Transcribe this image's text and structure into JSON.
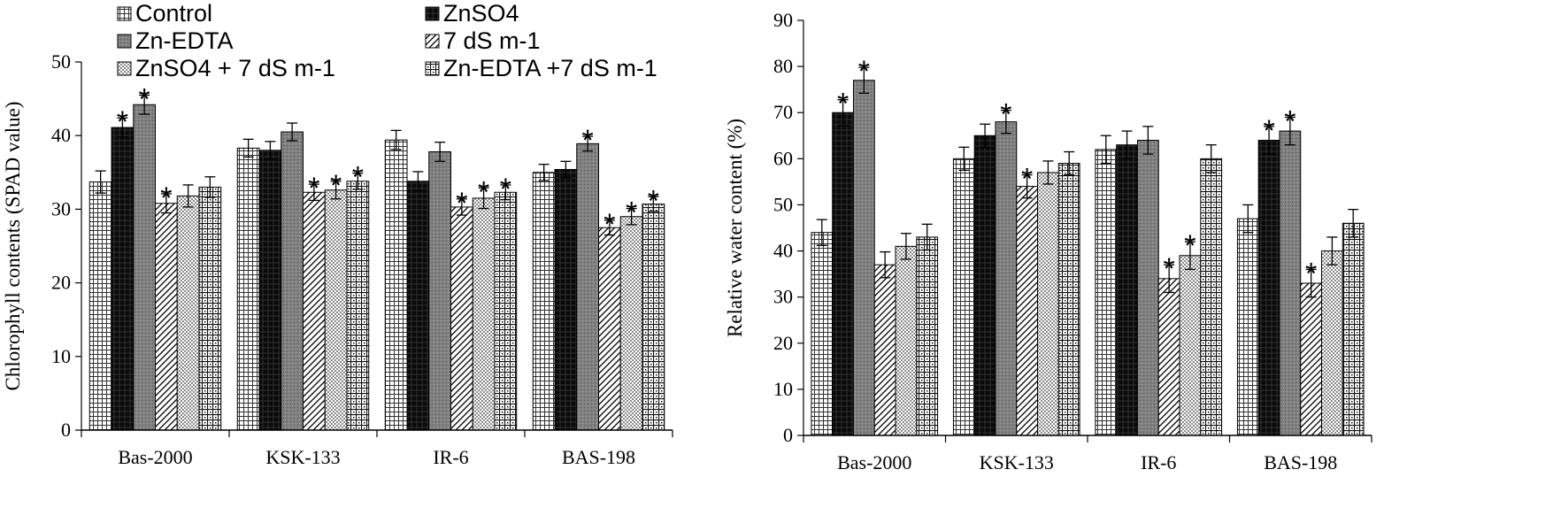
{
  "legend": [
    {
      "name": "Control",
      "pattern": "grid"
    },
    {
      "name": "ZnSO4",
      "pattern": "solid"
    },
    {
      "name": "Zn-EDTA",
      "pattern": "gray"
    },
    {
      "name": "7 dS m-1",
      "pattern": "diag"
    },
    {
      "name": "ZnSO4 + 7 dS m-1",
      "pattern": "check"
    },
    {
      "name": "Zn-EDTA +7 dS m-1",
      "pattern": "dots"
    }
  ],
  "chart_data": [
    {
      "type": "bar",
      "title": "",
      "xlabel": "",
      "ylabel": "Chlorophyll contents (SPAD value)",
      "ylim": [
        0,
        50
      ],
      "yticks": [
        "0",
        "10",
        "20",
        "30",
        "40",
        "50"
      ],
      "categories": [
        "Bas-2000",
        "KSK-133",
        "IR-6",
        "BAS-198"
      ],
      "significance_marker": "*",
      "series": [
        {
          "name": "Control",
          "values": [
            33.7,
            38.3,
            39.4,
            35.0
          ],
          "errors": [
            1.5,
            1.2,
            1.3,
            1.1
          ],
          "significant": [
            false,
            false,
            false,
            false
          ]
        },
        {
          "name": "ZnSO4",
          "values": [
            41.1,
            38.0,
            33.8,
            35.4
          ],
          "errors": [
            1.3,
            1.2,
            1.3,
            1.1
          ],
          "significant": [
            true,
            false,
            false,
            false
          ]
        },
        {
          "name": "Zn-EDTA",
          "values": [
            44.2,
            40.5,
            37.8,
            38.9
          ],
          "errors": [
            1.3,
            1.2,
            1.3,
            1.0
          ],
          "significant": [
            true,
            false,
            false,
            true
          ]
        },
        {
          "name": "7 dS m-1",
          "values": [
            30.8,
            32.3,
            30.3,
            27.5
          ],
          "errors": [
            1.3,
            1.1,
            1.1,
            1.0
          ],
          "significant": [
            true,
            true,
            true,
            true
          ]
        },
        {
          "name": "ZnSO4 + 7 dS m-1",
          "values": [
            31.8,
            32.6,
            31.5,
            29.0
          ],
          "errors": [
            1.5,
            1.2,
            1.4,
            1.1
          ],
          "significant": [
            false,
            true,
            true,
            true
          ]
        },
        {
          "name": "Zn-EDTA +7 dS m-1",
          "values": [
            33.0,
            33.8,
            32.3,
            30.7
          ],
          "errors": [
            1.4,
            1.1,
            1.0,
            1.0
          ],
          "significant": [
            false,
            true,
            true,
            true
          ]
        }
      ]
    },
    {
      "type": "bar",
      "title": "",
      "xlabel": "",
      "ylabel": "Relative water content (%)",
      "ylim": [
        0,
        90
      ],
      "yticks": [
        "0",
        "10",
        "20",
        "30",
        "40",
        "50",
        "60",
        "70",
        "80",
        "90"
      ],
      "categories": [
        "Bas-2000",
        "KSK-133",
        "IR-6",
        "BAS-198"
      ],
      "significance_marker": "*",
      "series": [
        {
          "name": "Control",
          "values": [
            44,
            60,
            62,
            47
          ],
          "errors": [
            2.8,
            2.5,
            3.0,
            3.0
          ],
          "significant": [
            false,
            false,
            false,
            false
          ]
        },
        {
          "name": "ZnSO4",
          "values": [
            70,
            65,
            63,
            64
          ],
          "errors": [
            2.8,
            2.5,
            3.0,
            3.0
          ],
          "significant": [
            true,
            false,
            false,
            true
          ]
        },
        {
          "name": "Zn-EDTA",
          "values": [
            77,
            68,
            64,
            66
          ],
          "errors": [
            2.8,
            2.5,
            3.0,
            3.0
          ],
          "significant": [
            true,
            true,
            false,
            true
          ]
        },
        {
          "name": "7 dS m-1",
          "values": [
            37,
            54,
            34,
            33
          ],
          "errors": [
            2.8,
            2.5,
            3.0,
            3.0
          ],
          "significant": [
            false,
            true,
            true,
            true
          ]
        },
        {
          "name": "ZnSO4 + 7 dS m-1",
          "values": [
            41,
            57,
            39,
            40
          ],
          "errors": [
            2.8,
            2.5,
            3.0,
            3.0
          ],
          "significant": [
            false,
            false,
            true,
            false
          ]
        },
        {
          "name": "Zn-EDTA +7 dS m-1",
          "values": [
            43,
            59,
            60,
            46
          ],
          "errors": [
            2.8,
            2.5,
            3.0,
            3.0
          ],
          "significant": [
            false,
            false,
            false,
            false
          ]
        }
      ]
    }
  ]
}
